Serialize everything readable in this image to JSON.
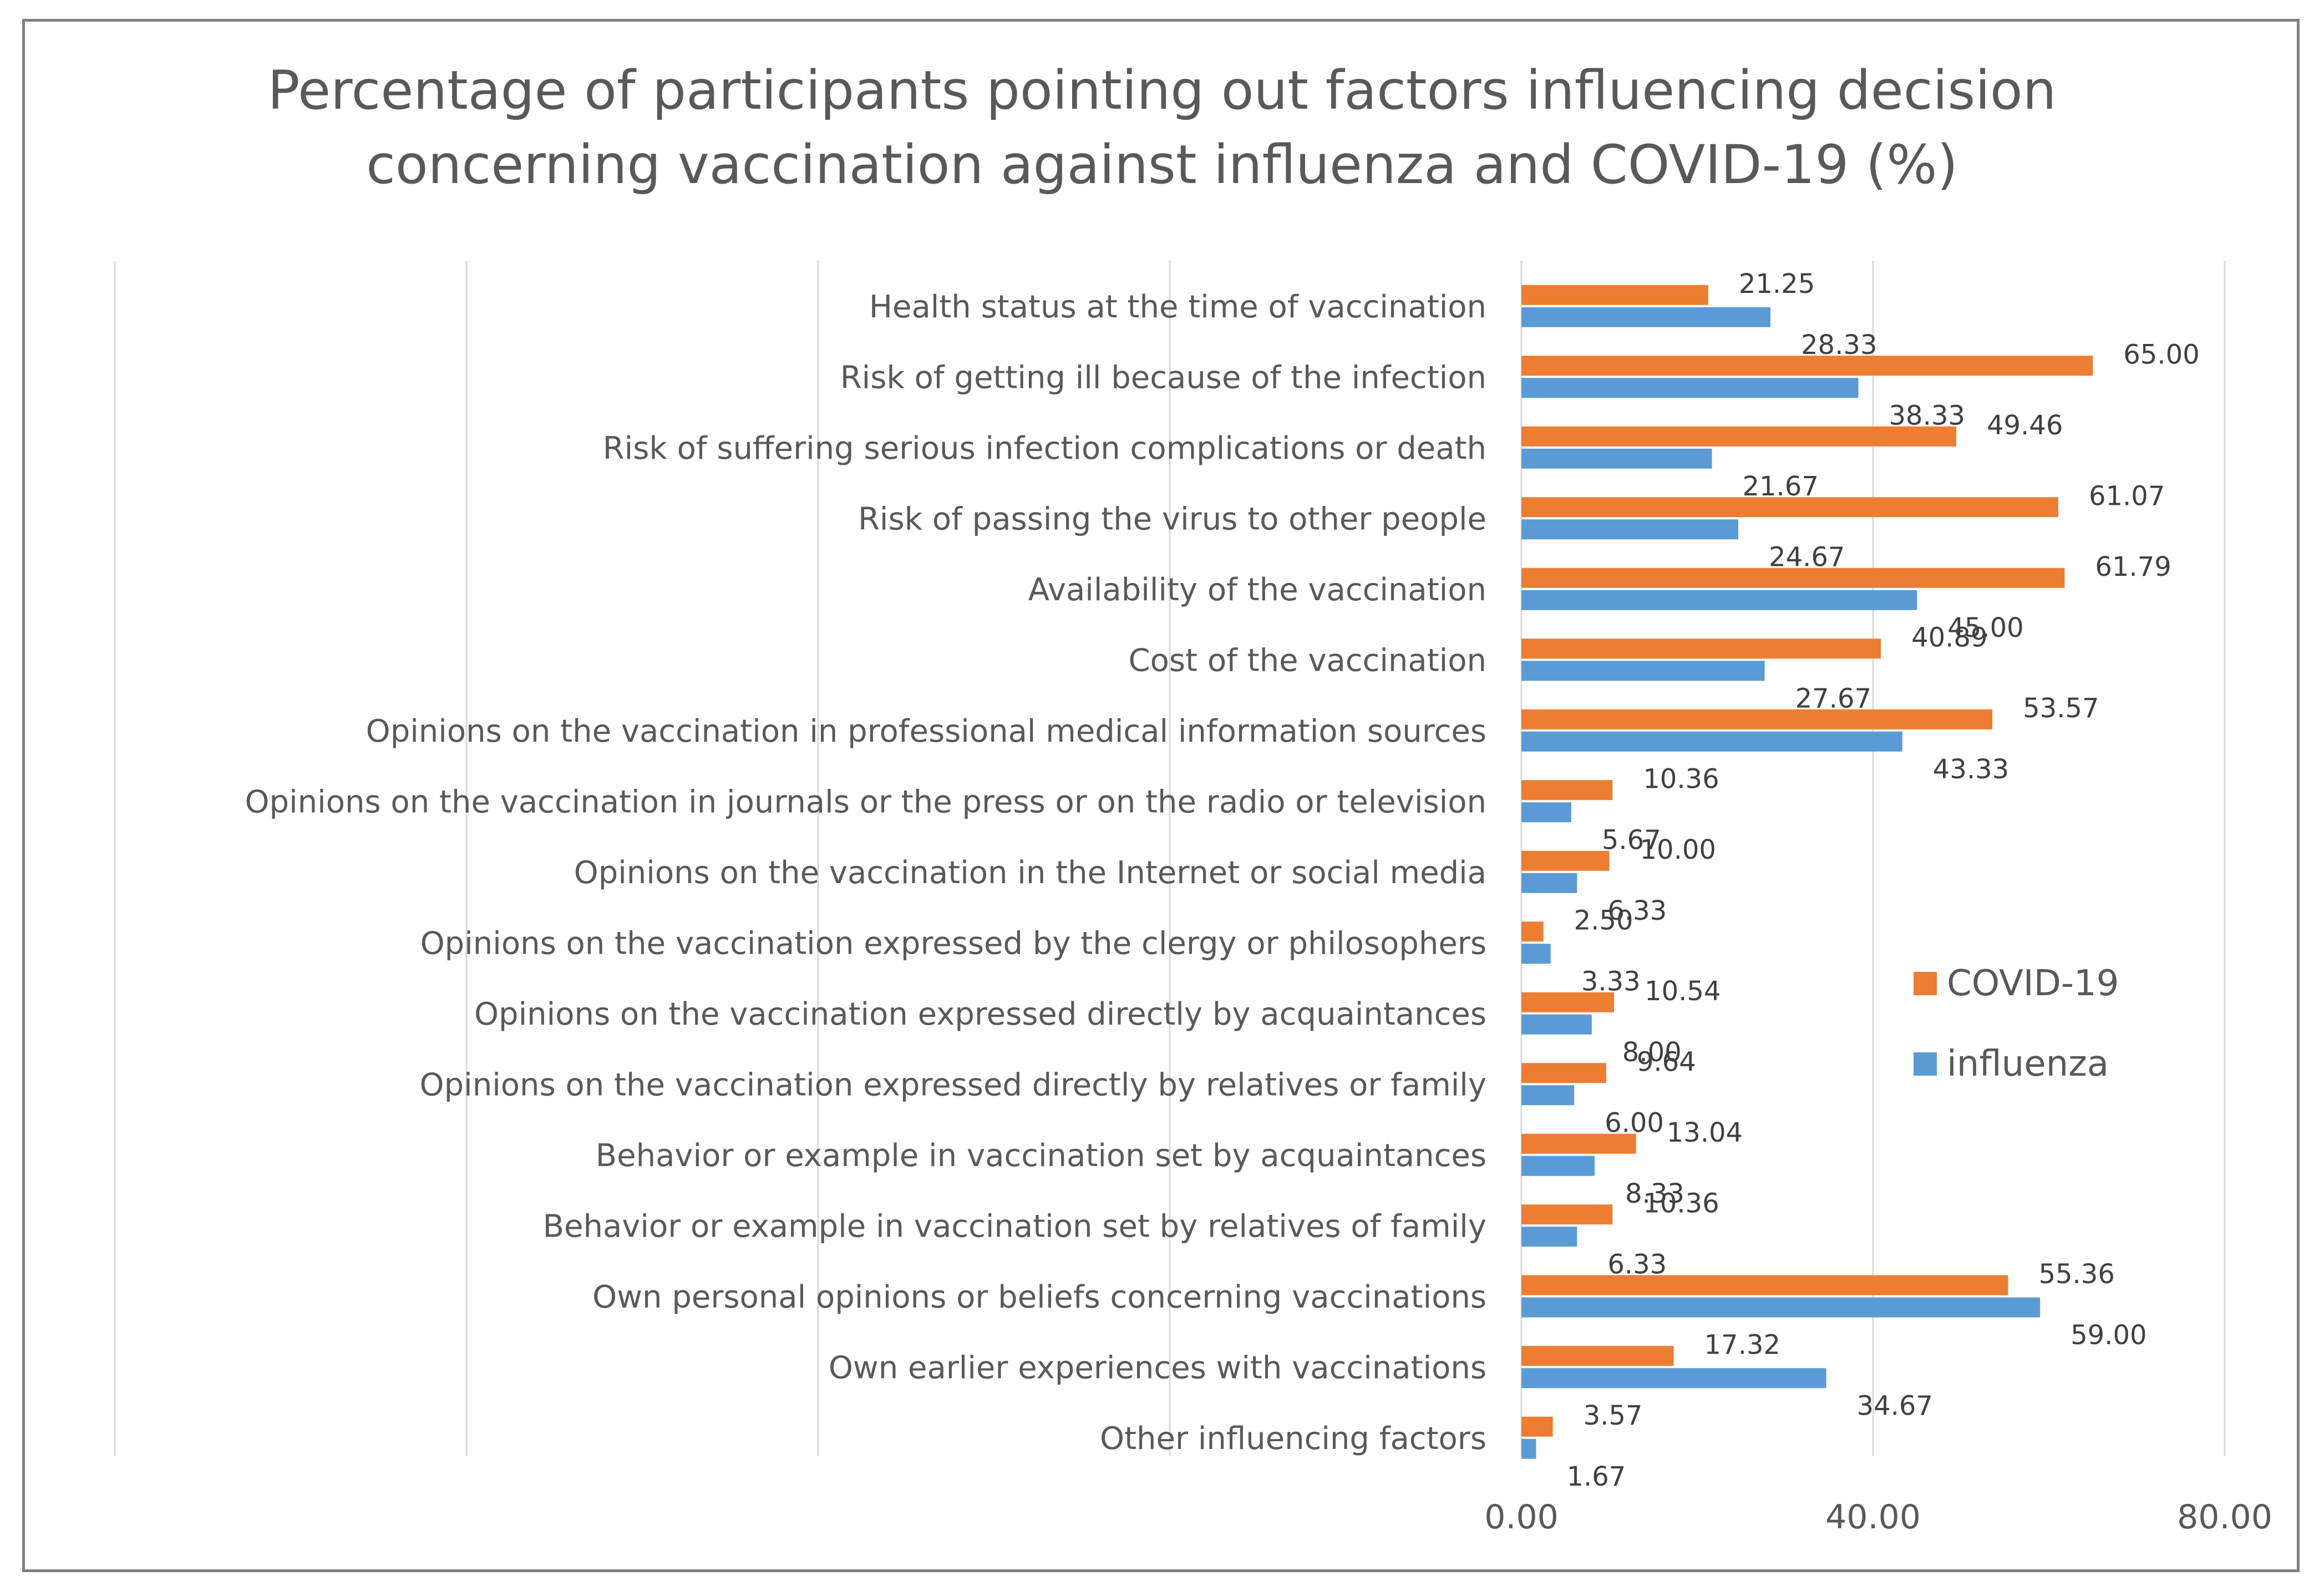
{
  "chart_data": {
    "type": "bar",
    "orientation": "horizontal",
    "title": "Percentage of participants pointing out factors influencing decision concerning vaccination against influenza and COVID-19 (%)",
    "title_lines": [
      "Percentage of participants pointing out factors influencing decision",
      "concerning vaccination against influenza and COVID-19 (%)"
    ],
    "categories": [
      "Health status at the time of vaccination",
      "Risk of  getting ill because of the infection",
      "Risk of suffering serious infection complications or death",
      "Risk of passing the virus to other people",
      "Availability of the  vaccination",
      "Cost of the vaccination",
      "Opinions on the vaccination in professional medical information sources",
      "Opinions on the vaccination  in  journals or the press or on the radio or television",
      "Opinions on the vaccination in the Internet or social media",
      "Opinions on the vaccination expressed by the clergy or philosophers",
      "Opinions on the vaccination expressed directly by acquaintances",
      "Opinions on the vaccination expressed directly by relatives or family",
      "Behavior or example in vaccination set by acquaintances",
      "Behavior or example in vaccination set by relatives of family",
      "Own personal opinions or beliefs concerning vaccinations",
      "Own earlier experiences with vaccinations",
      "Other influencing factors"
    ],
    "series": [
      {
        "name": "COVID-19",
        "color": "#ed7d31",
        "values": [
          21.25,
          65.0,
          49.46,
          61.07,
          61.79,
          40.89,
          53.57,
          10.36,
          10.0,
          2.5,
          10.54,
          9.64,
          13.04,
          10.36,
          55.36,
          17.32,
          3.57
        ],
        "labels": [
          "21.25",
          "65.00",
          "49.46",
          "61.07",
          "61.79",
          "40.89",
          "53.57",
          "10.36",
          "10.00",
          "2.50",
          "10.54",
          "9.64",
          "13.04",
          "10.36",
          "55.36",
          "17.32",
          "3.57"
        ]
      },
      {
        "name": "influenza",
        "color": "#5b9bd5",
        "values": [
          28.33,
          38.33,
          21.67,
          24.67,
          45.0,
          27.67,
          43.33,
          5.67,
          6.33,
          3.33,
          8.0,
          6.0,
          8.33,
          6.33,
          59.0,
          34.67,
          1.67
        ],
        "labels": [
          "28.33",
          "38.33",
          "21.67",
          "24.67",
          "45.00",
          "27.67",
          "43.33",
          "5.67",
          "6.33",
          "3.33",
          "8.00",
          "6.00",
          "8.33",
          "6.33",
          "59.00",
          "34.67",
          "1.67"
        ]
      }
    ],
    "x_ticks": [
      0,
      40,
      80
    ],
    "x_tick_labels": [
      "0.00",
      "40.00",
      "80.00"
    ],
    "xlim": [
      -160,
      80
    ],
    "grid": true,
    "legend_position": "right"
  }
}
